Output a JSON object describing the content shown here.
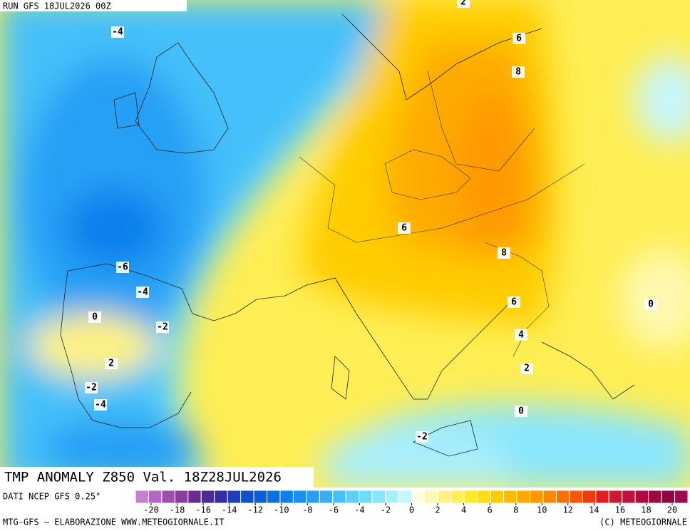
{
  "header": {
    "run": "RUN GFS 18JUL2026 00Z"
  },
  "title": "TMP ANOMALY Z850 Val. 18Z28JUL2026",
  "contour_labels": [
    -4,
    2,
    6,
    8,
    6,
    -6,
    -4,
    8,
    0,
    -2,
    6,
    0,
    4,
    2,
    2,
    -2,
    -4,
    0,
    -2
  ],
  "legend": {
    "source": "DATI NCEP GFS 0.25°",
    "colors": [
      "#c77fd6",
      "#b566c4",
      "#9d4fb0",
      "#8a3f9f",
      "#6a2d8f",
      "#4b2a9a",
      "#2f2fa8",
      "#1f3fb8",
      "#1050c8",
      "#0a5fd8",
      "#0b70e4",
      "#1080ee",
      "#1a90f2",
      "#25a0f5",
      "#33b0f7",
      "#45c0fa",
      "#5ad0fb",
      "#70dcfc",
      "#8ae6fd",
      "#a8eefd",
      "#c8f6fe",
      "#fffde0",
      "#fff9b0",
      "#fff380",
      "#ffee55",
      "#ffe830",
      "#ffdd10",
      "#ffcc00",
      "#ffbb00",
      "#ffaa00",
      "#ff9900",
      "#ff8800",
      "#ff7000",
      "#ff5500",
      "#f03a10",
      "#e02020",
      "#d01830",
      "#c01040",
      "#b00a40",
      "#a00840",
      "#900640",
      "#a00850"
    ],
    "ticks": [
      -20,
      -18,
      -16,
      -14,
      -12,
      -10,
      -8,
      -6,
      -4,
      -2,
      0,
      2,
      4,
      6,
      8,
      10,
      12,
      14,
      16,
      18,
      20
    ]
  },
  "footer": {
    "left": "MTG-GFS — ELABORAZIONE WWW.METEOGIORNALE.IT",
    "right": "(C) METEOGIORNALE"
  }
}
